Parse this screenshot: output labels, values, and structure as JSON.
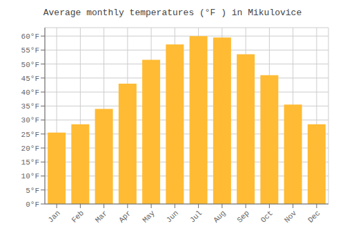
{
  "chart_data": {
    "type": "bar",
    "title": "Average monthly temperatures (°F ) in Mikulovice",
    "categories": [
      "Jan",
      "Feb",
      "Mar",
      "Apr",
      "May",
      "Jun",
      "Jul",
      "Aug",
      "Sep",
      "Oct",
      "Nov",
      "Dec"
    ],
    "values": [
      25.5,
      28.5,
      34.0,
      43.0,
      51.5,
      57.0,
      60.0,
      59.5,
      53.5,
      46.0,
      35.5,
      28.5
    ],
    "color": "#FFBB33",
    "ylim": [
      0,
      63
    ],
    "yticks": [
      {
        "value": 0,
        "label": "0°F"
      },
      {
        "value": 5,
        "label": "5°F"
      },
      {
        "value": 10,
        "label": "10°F"
      },
      {
        "value": 15,
        "label": "15°F"
      },
      {
        "value": 20,
        "label": "20°F"
      },
      {
        "value": 25,
        "label": "25°F"
      },
      {
        "value": 30,
        "label": "30°F"
      },
      {
        "value": 35,
        "label": "35°F"
      },
      {
        "value": 40,
        "label": "40°F"
      },
      {
        "value": 45,
        "label": "45°F"
      },
      {
        "value": 50,
        "label": "50°F"
      },
      {
        "value": 55,
        "label": "55°F"
      },
      {
        "value": 60,
        "label": "60°F"
      }
    ],
    "grid": true
  }
}
